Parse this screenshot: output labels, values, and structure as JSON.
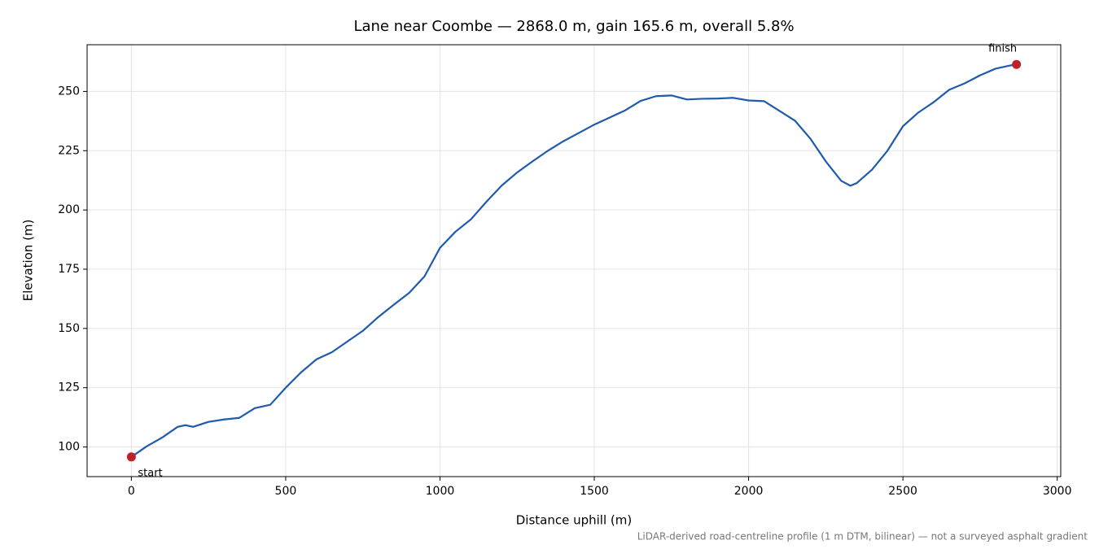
{
  "chart_data": {
    "type": "line",
    "title": "Lane near Coombe — 2868.0 m, gain 165.6 m, overall 5.8%",
    "x_label": "Distance uphill (m)",
    "y_label": "Elevation (m)",
    "footnote": "LiDAR-derived road-centreline profile (1 m DTM, bilinear) — not a surveyed asphalt gradient",
    "annotations": [
      "start",
      "finish"
    ],
    "endpoint_color": "#c0202a",
    "grid": true,
    "x": [
      0,
      50,
      100,
      150,
      175,
      200,
      250,
      300,
      350,
      400,
      450,
      500,
      550,
      600,
      650,
      700,
      750,
      800,
      850,
      900,
      950,
      1000,
      1050,
      1100,
      1150,
      1200,
      1250,
      1300,
      1350,
      1400,
      1450,
      1500,
      1550,
      1600,
      1650,
      1700,
      1750,
      1800,
      1850,
      1900,
      1950,
      2000,
      2050,
      2100,
      2150,
      2200,
      2250,
      2300,
      2330,
      2350,
      2400,
      2450,
      2500,
      2550,
      2600,
      2650,
      2700,
      2750,
      2800,
      2850,
      2868
    ],
    "series": [
      {
        "color": "#1f5aad",
        "values": [
          95.8,
          100.3,
          104,
          108.5,
          109.2,
          108.5,
          110.6,
          111.6,
          112.3,
          116.4,
          117.8,
          125,
          131.5,
          137,
          140,
          144.5,
          149,
          154.8,
          160,
          165,
          172,
          184,
          190.8,
          196,
          203.4,
          210.3,
          215.8,
          220.5,
          225,
          229,
          232.5,
          236,
          239,
          242,
          246,
          248,
          248.3,
          246.6,
          246.9,
          247,
          247.3,
          246.2,
          245.9,
          241.8,
          237.7,
          230.1,
          220.5,
          212.3,
          210.2,
          211.3,
          217,
          225,
          235.3,
          241.1,
          245.5,
          250.7,
          253.4,
          256.8,
          259.6,
          261,
          261.4
        ]
      }
    ],
    "xlim": [
      -143.4,
      3011.4
    ],
    "xticks": [
      0,
      500,
      1000,
      1500,
      2000,
      2500,
      3000
    ],
    "ylim": [
      87.5,
      269.7
    ],
    "yticks": [
      100,
      125,
      150,
      175,
      200,
      225,
      250
    ]
  }
}
